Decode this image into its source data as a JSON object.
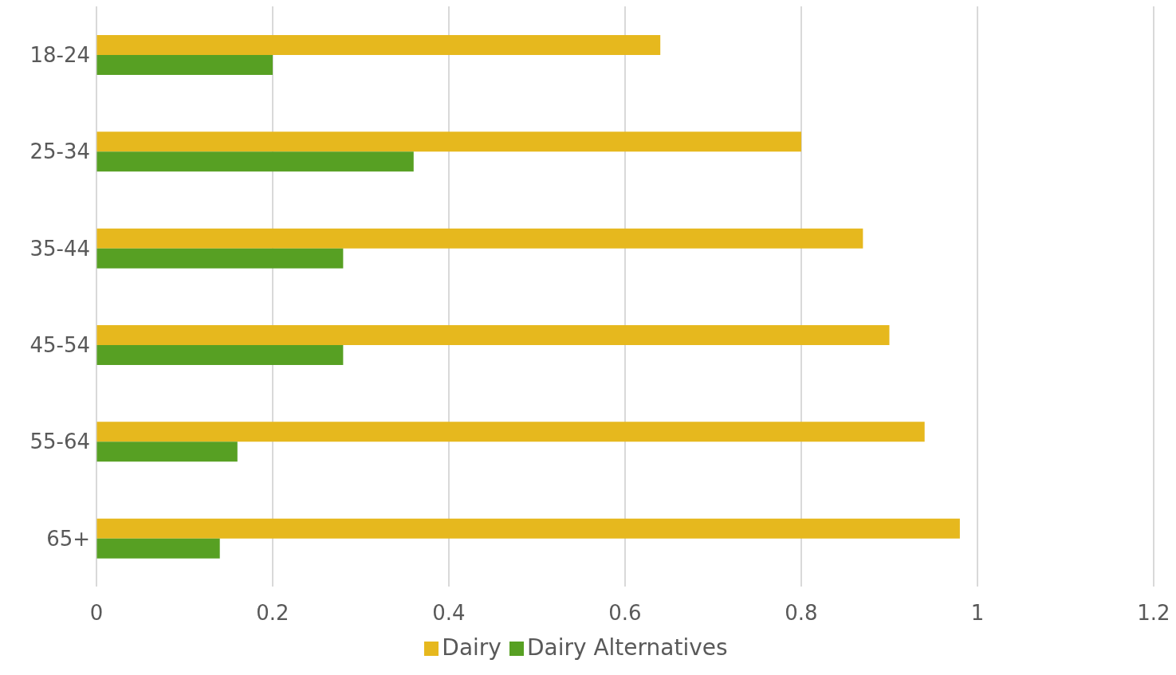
{
  "chart_data": {
    "type": "bar",
    "orientation": "horizontal",
    "categories": [
      "18-24",
      "25-34",
      "35-44",
      "45-54",
      "55-64",
      "65+"
    ],
    "series": [
      {
        "name": "Dairy",
        "color": "#e6b81e",
        "values": [
          0.64,
          0.8,
          0.87,
          0.9,
          0.94,
          0.98
        ]
      },
      {
        "name": "Dairy Alternatives",
        "color": "#57a023",
        "values": [
          0.2,
          0.36,
          0.28,
          0.28,
          0.16,
          0.14
        ]
      }
    ],
    "xlim": [
      0,
      1.2
    ],
    "xticks": [
      0,
      0.2,
      0.4,
      0.6,
      0.8,
      1,
      1.2
    ],
    "grid": "x",
    "legend": "bottom"
  }
}
